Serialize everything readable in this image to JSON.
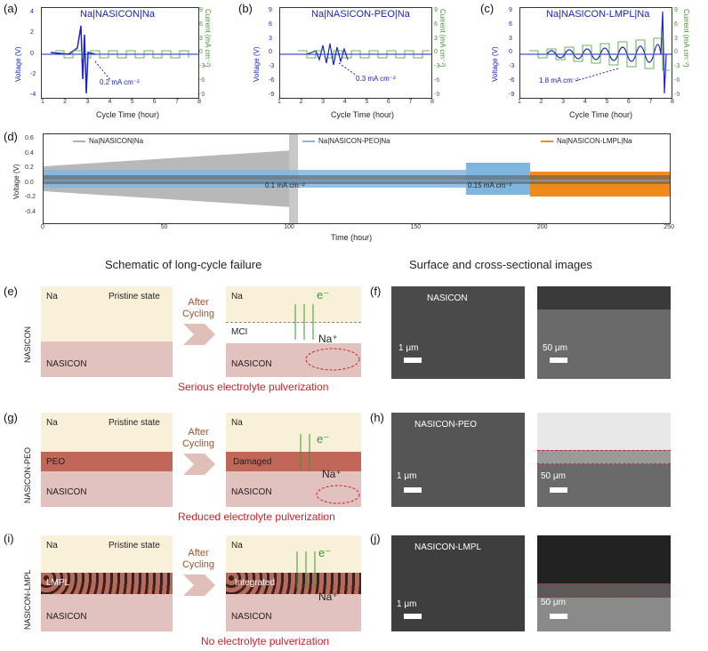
{
  "panels_top": {
    "a": {
      "label": "(a)",
      "title": "Na|NASICON|Na",
      "current": "0.2 mA cm⁻²",
      "xlabel": "Cycle Time (hour)",
      "ylabel_left": "Voltage (V)",
      "ylabel_right": "Current (mA cm⁻²)",
      "xticks": [
        "1",
        "2",
        "3",
        "4",
        "5",
        "6",
        "7",
        "8"
      ],
      "yticks_left": [
        "4",
        "2",
        "0",
        "-2",
        "-4"
      ],
      "yticks_right": [
        "9",
        "6",
        "3",
        "0",
        "-3",
        "-6",
        "-9"
      ]
    },
    "b": {
      "label": "(b)",
      "title": "Na|NASICON-PEO|Na",
      "current": "0.3 mA cm⁻²",
      "xlabel": "Cycle Time (hour)",
      "ylabel_left": "Voltage (V)",
      "ylabel_right": "Current (mA cm⁻²)",
      "xticks": [
        "1",
        "2",
        "3",
        "4",
        "5",
        "6",
        "7",
        "8"
      ],
      "yticks_left": [
        "9",
        "6",
        "3",
        "0",
        "-3",
        "-6",
        "-9"
      ],
      "yticks_right": [
        "9",
        "6",
        "3",
        "0",
        "-3",
        "-6",
        "-9"
      ]
    },
    "c": {
      "label": "(c)",
      "title": "Na|NASICON-LMPL|Na",
      "current": "1.8 mA cm⁻²",
      "xlabel": "Cycle Time (hour)",
      "ylabel_left": "Voltage (V)",
      "ylabel_right": "Current (mA cm⁻²)",
      "xticks": [
        "1",
        "2",
        "3",
        "4",
        "5",
        "6",
        "7",
        "8"
      ],
      "yticks_left": [
        "9",
        "6",
        "3",
        "0",
        "-3",
        "-6",
        "-9"
      ],
      "yticks_right": [
        "9",
        "6",
        "3",
        "0",
        "-3",
        "-6",
        "-9"
      ]
    }
  },
  "panel_d": {
    "label": "(d)",
    "ylabel": "Voltage (V)",
    "xlabel": "Time (hour)",
    "xticks": [
      "0",
      "50",
      "100",
      "150",
      "200",
      "250"
    ],
    "yticks": [
      "0.6",
      "0.4",
      "0.2",
      "0.0",
      "-0.2",
      "-0.4"
    ],
    "legend": [
      "Na|NASICON|Na",
      "Na|NASICON-PEO|Na",
      "Na|NASICON-LMPL|Na"
    ],
    "annotations": [
      "0.1 mA cm⁻²",
      "0.15 mA cm⁻²"
    ]
  },
  "headings": {
    "left": "Schematic of long-cycle failure",
    "right": "Surface and cross-sectional images"
  },
  "rows": [
    {
      "label": "(e)",
      "side": "NASICON",
      "pristine": {
        "top": "Na",
        "state": "Pristine state",
        "bottom": "NASICON"
      },
      "arrow": "After Cycling",
      "after": {
        "top": "Na",
        "mid": "MCI",
        "electron": "e⁻",
        "ion": "Na⁺",
        "bottom": "NASICON"
      },
      "result": "Serious electrolyte pulverization",
      "sem_label": "(f)",
      "sem_title": "NASICON",
      "scale1": "1 μm",
      "scale2": "50 μm"
    },
    {
      "label": "(g)",
      "side": "NASICON-PEO",
      "pristine": {
        "top": "Na",
        "state": "Pristine state",
        "layer": "PEO",
        "bottom": "NASICON"
      },
      "arrow": "After Cycling",
      "after": {
        "top": "Na",
        "mid": "Damaged",
        "electron": "e⁻",
        "ion": "Na⁺",
        "bottom": "NASICON"
      },
      "result": "Reduced electrolyte pulverization",
      "sem_label": "(h)",
      "sem_title": "NASICON-PEO",
      "scale1": "1 μm",
      "scale2": "50 μm"
    },
    {
      "label": "(i)",
      "side": "NASICON-LMPL",
      "pristine": {
        "top": "Na",
        "state": "Pristine state",
        "layer": "LMPL",
        "bottom": "NASICON"
      },
      "arrow": "After Cycling",
      "after": {
        "top": "Na",
        "mid": "Integrated",
        "electron": "e⁻",
        "ion": "Na⁺",
        "bottom": "NASICON"
      },
      "result": "No electrolyte pulverization",
      "sem_label": "(j)",
      "sem_title": "NASICON-LMPL",
      "scale1": "1 μm",
      "scale2": "50 μm"
    }
  ],
  "colors": {
    "blue": "#1a22c8",
    "green": "#3a9a2a",
    "red": "#d2202a",
    "orange": "#f08a1c",
    "grey": "#b0b0b0",
    "lightblue": "#7fb6e0"
  }
}
